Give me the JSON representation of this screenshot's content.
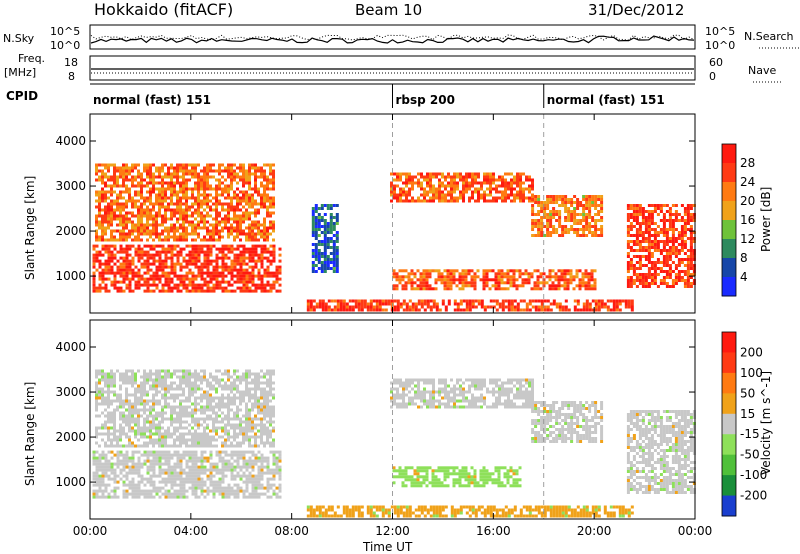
{
  "header": {
    "station": "Hokkaido (fitACF)",
    "beam": "Beam 10",
    "date": "31/Dec/2012"
  },
  "noise_panel": {
    "left_label": "N.Sky",
    "right_label": "N.Search",
    "left_top_tick": "10^5",
    "left_bottom_tick": "10^0",
    "right_top_tick": "10^5",
    "right_bottom_tick": "10^0"
  },
  "freq_panel": {
    "left_label_1": "Freq.",
    "left_label_2": "[MHz]",
    "left_top_tick": "18",
    "left_bottom_tick": "8",
    "right_label": "Nave",
    "right_top_tick": "60",
    "right_bottom_tick": "0"
  },
  "cpid_panel": {
    "label": "CPID",
    "segments": [
      {
        "label": "normal (fast) 151",
        "start_h": 0,
        "end_h": 12
      },
      {
        "label": "rbsp 200",
        "start_h": 12,
        "end_h": 18
      },
      {
        "label": "normal (fast) 151",
        "start_h": 18,
        "end_h": 24
      }
    ]
  },
  "chart_data": [
    {
      "type": "heatmap",
      "name": "power",
      "ylabel": "Slant Range [km]",
      "xlabel": "Time UT",
      "xlim_hours": [
        0,
        24
      ],
      "ylim_km": [
        180,
        4600
      ],
      "yticks": [
        1000,
        2000,
        3000,
        4000
      ],
      "xtick_labels": [
        "00:00",
        "04:00",
        "08:00",
        "12:00",
        "16:00",
        "20:00",
        "00:00"
      ],
      "colorbar_label": "Power [dB]",
      "colorbar_ticks": [
        "4",
        "8",
        "12",
        "16",
        "20",
        "24",
        "28"
      ],
      "colorbar_colors": [
        "#1a2bff",
        "#1646a8",
        "#2d8a5e",
        "#6ec23a",
        "#f0a21a",
        "#ff7a12",
        "#ff3a14",
        "#ff1a10"
      ],
      "echo_regions": [
        {
          "t0": 0.1,
          "t1": 7.5,
          "r0": 650,
          "r1": 1700,
          "level": 0.92
        },
        {
          "t0": 0.2,
          "t1": 7.3,
          "r0": 1800,
          "r1": 3500,
          "level": 0.75
        },
        {
          "t0": 8.8,
          "t1": 9.8,
          "r0": 1100,
          "r1": 2600,
          "level": 0.15
        },
        {
          "t0": 11.9,
          "t1": 17.5,
          "r0": 2700,
          "r1": 3300,
          "level": 0.8
        },
        {
          "t0": 17.5,
          "t1": 20.3,
          "r0": 1900,
          "r1": 2800,
          "level": 0.7
        },
        {
          "t0": 12.0,
          "t1": 20.0,
          "r0": 750,
          "r1": 1150,
          "level": 0.8
        },
        {
          "t0": 8.6,
          "t1": 21.5,
          "r0": 250,
          "r1": 480,
          "level": 0.9
        },
        {
          "t0": 21.3,
          "t1": 24.0,
          "r0": 800,
          "r1": 2600,
          "level": 0.9
        }
      ]
    },
    {
      "type": "heatmap",
      "name": "velocity",
      "ylabel": "Slant Range [km]",
      "xlabel": "Time UT",
      "xlim_hours": [
        0,
        24
      ],
      "ylim_km": [
        180,
        4600
      ],
      "yticks": [
        1000,
        2000,
        3000,
        4000
      ],
      "colorbar_label": "Velocity [m s^-1]",
      "colorbar_ticks": [
        "200",
        "100",
        "50",
        "15",
        "-15",
        "-50",
        "-100",
        "-200"
      ],
      "colorbar_colors": [
        "#1a3fcf",
        "#1a8f3a",
        "#50c03a",
        "#8ee05a",
        "#c8c8c8",
        "#f0a21a",
        "#ff7a12",
        "#ff3a14",
        "#ff1a10"
      ],
      "echo_regions": [
        {
          "t0": 0.1,
          "t1": 7.5,
          "r0": 650,
          "r1": 1700,
          "level": 0.5
        },
        {
          "t0": 0.2,
          "t1": 7.3,
          "r0": 1800,
          "r1": 3500,
          "level": 0.5
        },
        {
          "t0": 11.9,
          "t1": 17.5,
          "r0": 2700,
          "r1": 3300,
          "level": 0.5
        },
        {
          "t0": 12.0,
          "t1": 17.0,
          "r0": 900,
          "r1": 1350,
          "level": 0.72
        },
        {
          "t0": 17.5,
          "t1": 20.3,
          "r0": 1900,
          "r1": 2800,
          "level": 0.5
        },
        {
          "t0": 8.6,
          "t1": 21.5,
          "r0": 250,
          "r1": 480,
          "level": 0.35
        },
        {
          "t0": 21.3,
          "t1": 24.0,
          "r0": 800,
          "r1": 2600,
          "level": 0.5
        }
      ]
    }
  ]
}
